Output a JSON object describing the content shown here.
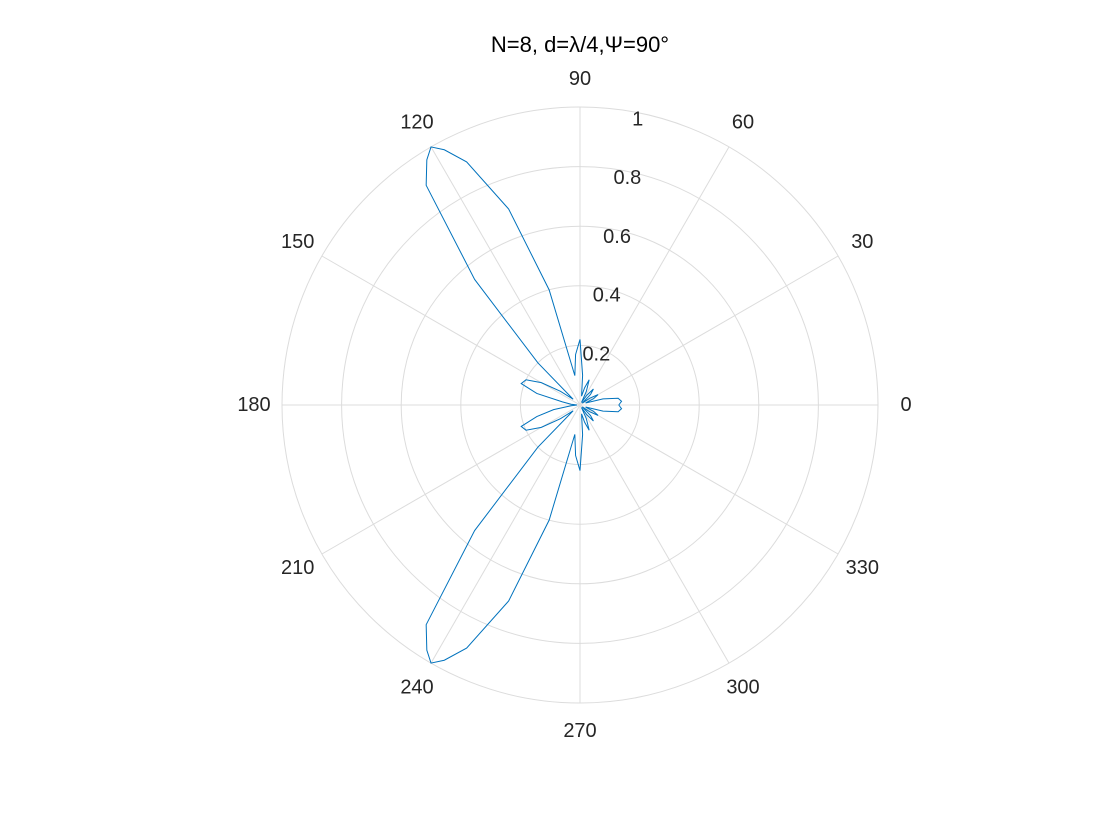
{
  "chart_data": {
    "type": "polar-line",
    "title": "N=8, d=λ/4,Ψ=90°",
    "theta_ticks": [
      0,
      30,
      60,
      90,
      120,
      150,
      180,
      210,
      240,
      270,
      300,
      330
    ],
    "theta_tick_labels": [
      "0",
      "30",
      "60",
      "90",
      "120",
      "150",
      "180",
      "210",
      "240",
      "270",
      "300",
      "330"
    ],
    "r_ticks": [
      0.2,
      0.4,
      0.6,
      0.8,
      1
    ],
    "r_tick_labels": [
      "0.2",
      "0.4",
      "0.6",
      "0.8",
      "1"
    ],
    "rlim": [
      0,
      1
    ],
    "grid": true,
    "series": [
      {
        "color": "#0072bd",
        "theta_deg": [
          0,
          5,
          10,
          15,
          20,
          25,
          30,
          35,
          40,
          45,
          50,
          55,
          60,
          65,
          70,
          75,
          80,
          85,
          90,
          95,
          100,
          105,
          110,
          115,
          118,
          120,
          122,
          125,
          130,
          135,
          140,
          145,
          150,
          155,
          160,
          165,
          170,
          175,
          180,
          185,
          190,
          195,
          200,
          205,
          210,
          215,
          220,
          225,
          230,
          235,
          238,
          240,
          242,
          245,
          250,
          255,
          260,
          265,
          270,
          275,
          280,
          285,
          290,
          295,
          300,
          305,
          310,
          315,
          320,
          325,
          330,
          335,
          340,
          345,
          350,
          355,
          360
        ],
        "r": [
          0.13,
          0.14,
          0.13,
          0.08,
          0.02,
          0.05,
          0.07,
          0.04,
          0.01,
          0.05,
          0.07,
          0.04,
          0.01,
          0.05,
          0.09,
          0.06,
          0.03,
          0.1,
          0.22,
          0.17,
          0.1,
          0.4,
          0.7,
          0.9,
          0.97,
          1.0,
          0.97,
          0.9,
          0.55,
          0.2,
          0.03,
          0.08,
          0.15,
          0.2,
          0.21,
          0.15,
          0.06,
          0.03,
          0.01,
          0.03,
          0.09,
          0.15,
          0.21,
          0.2,
          0.15,
          0.08,
          0.03,
          0.2,
          0.55,
          0.9,
          0.97,
          1.0,
          0.97,
          0.9,
          0.7,
          0.4,
          0.1,
          0.17,
          0.22,
          0.1,
          0.03,
          0.06,
          0.09,
          0.05,
          0.01,
          0.04,
          0.07,
          0.05,
          0.01,
          0.04,
          0.07,
          0.05,
          0.02,
          0.08,
          0.13,
          0.14,
          0.13
        ]
      }
    ]
  }
}
